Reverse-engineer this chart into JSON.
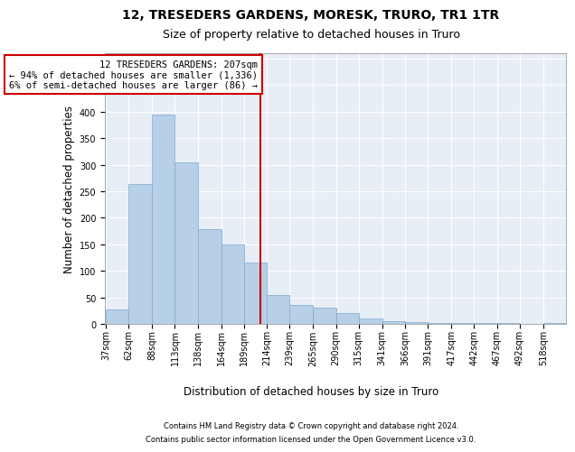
{
  "title1": "12, TRESEDERS GARDENS, MORESK, TRURO, TR1 1TR",
  "title2": "Size of property relative to detached houses in Truro",
  "xlabel": "Distribution of detached houses by size in Truro",
  "ylabel": "Number of detached properties",
  "footer1": "Contains HM Land Registry data © Crown copyright and database right 2024.",
  "footer2": "Contains public sector information licensed under the Open Government Licence v3.0.",
  "annotation_line1": "12 TRESEDERS GARDENS: 207sqm",
  "annotation_line2": "← 94% of detached houses are smaller (1,336)",
  "annotation_line3": "6% of semi-detached houses are larger (86) →",
  "bar_color": "#b8cfe8",
  "bar_edge_color": "#7aaad0",
  "vline_color": "#cc0000",
  "vline_x_bin": 7,
  "annotation_box_edge_color": "#cc0000",
  "bin_edges": [
    37,
    62,
    88,
    113,
    138,
    164,
    189,
    214,
    239,
    265,
    290,
    315,
    341,
    366,
    391,
    417,
    442,
    467,
    492,
    518,
    543
  ],
  "values": [
    28,
    263,
    395,
    305,
    178,
    150,
    115,
    55,
    35,
    30,
    20,
    10,
    5,
    3,
    2,
    2,
    1,
    1,
    0,
    2
  ],
  "ylim": [
    0,
    510
  ],
  "yticks": [
    0,
    50,
    100,
    150,
    200,
    250,
    300,
    350,
    400,
    450,
    500
  ],
  "bg_color": "#e8eef6",
  "grid_color": "#ffffff",
  "tick_label_fontsize": 7,
  "axis_label_fontsize": 8.5,
  "title_fontsize1": 10,
  "title_fontsize2": 9,
  "footer_fontsize": 6,
  "annotation_fontsize": 7.5
}
